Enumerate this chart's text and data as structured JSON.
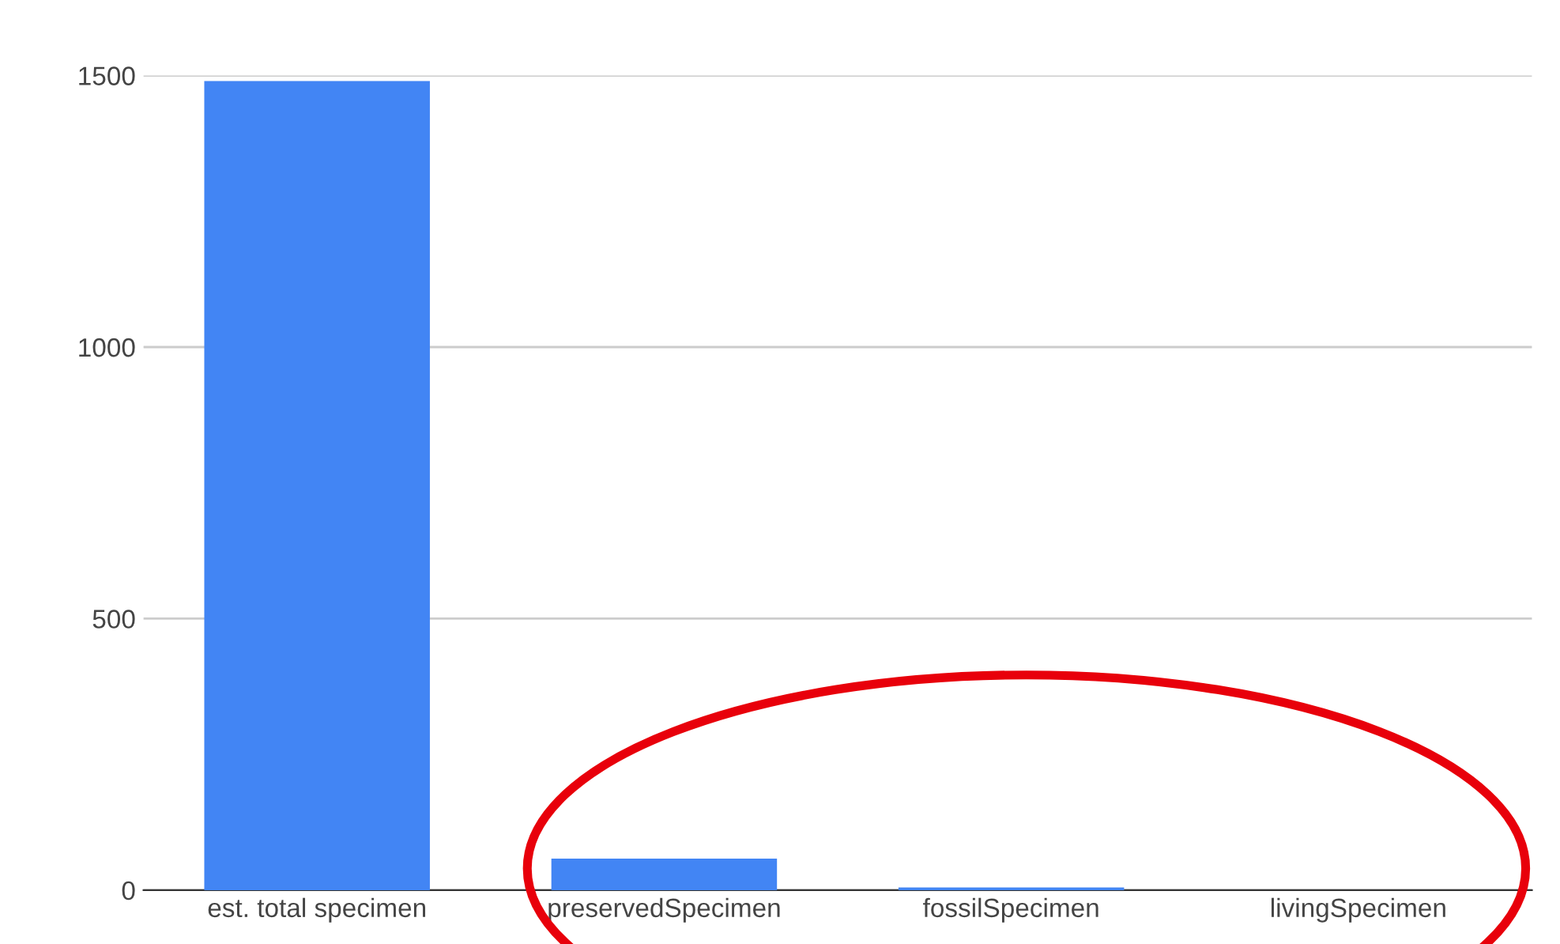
{
  "chart_data": {
    "type": "bar",
    "categories": [
      "est. total specimen",
      "preservedSpecimen",
      "fossilSpecimen",
      "livingSpecimen"
    ],
    "values": [
      1490,
      58,
      5,
      0
    ],
    "color": "#4285f4",
    "ylim": [
      0,
      1500
    ],
    "yticks": [
      0,
      500,
      1000,
      1500
    ],
    "grid": "y",
    "legend": false
  }
}
